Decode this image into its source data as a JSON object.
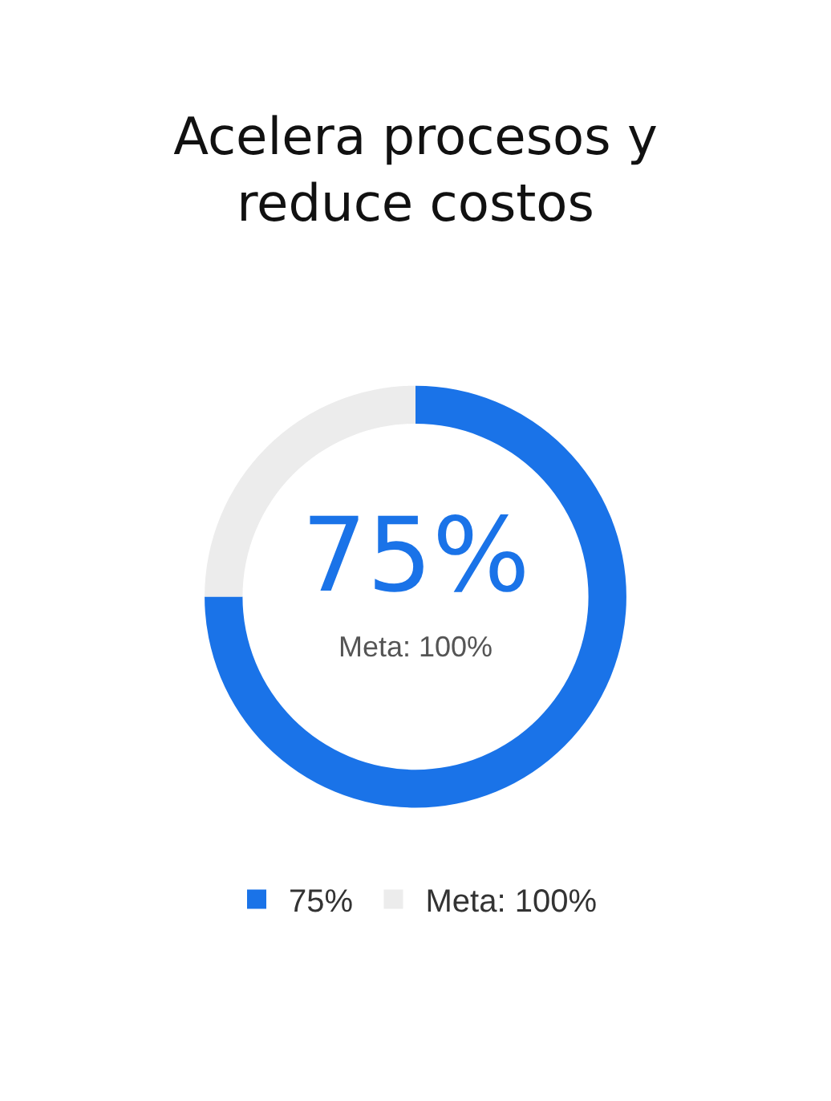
{
  "chart_data": {
    "type": "donut",
    "title": "Acelera procesos y reduce costos",
    "categories": [
      "75%",
      "Meta: 100%"
    ],
    "values": [
      75,
      25
    ],
    "colors": [
      "#1a73e8",
      "#ececec"
    ],
    "annotations": [
      "75%",
      "Meta: 100%"
    ],
    "legend": "bottom"
  }
}
